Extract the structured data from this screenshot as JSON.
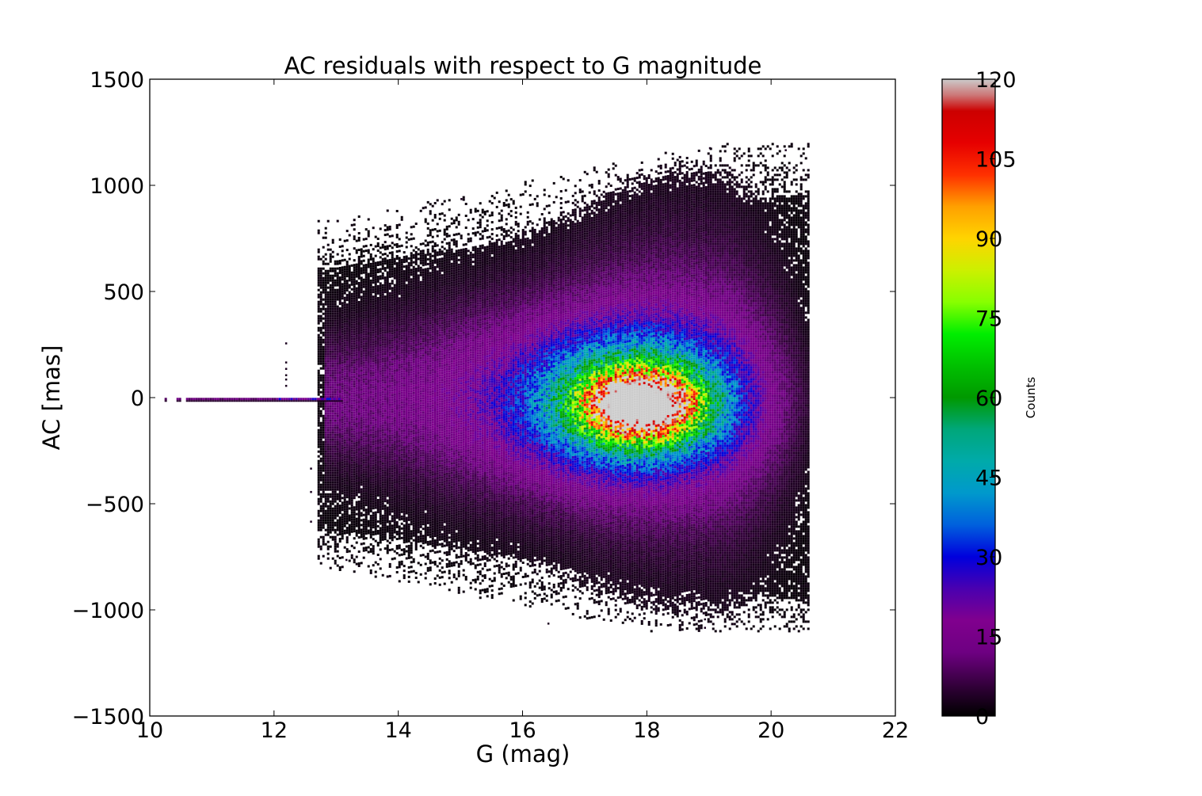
{
  "chart_data": {
    "type": "heatmap",
    "title": "AC residuals with respect to G magnitude",
    "xlabel": "G (mag)",
    "ylabel": "AC [mas]",
    "xlim": [
      10,
      22
    ],
    "ylim": [
      -1500,
      1500
    ],
    "xticks": [
      "10",
      "12",
      "14",
      "16",
      "18",
      "20",
      "22"
    ],
    "yticks": [
      "1500",
      "1000",
      "500",
      "0",
      "−500",
      "−1000",
      "−1500"
    ],
    "xtick_values": [
      10,
      12,
      14,
      16,
      18,
      20,
      22
    ],
    "ytick_values": [
      1500,
      1000,
      500,
      0,
      -500,
      -1000,
      -1500
    ],
    "grid": false,
    "colorbar": {
      "label": "Counts",
      "min": 0,
      "max": 120,
      "ticks": [
        "120",
        "105",
        "90",
        "75",
        "60",
        "45",
        "30",
        "15",
        "0"
      ],
      "tick_values": [
        120,
        105,
        90,
        75,
        60,
        45,
        30,
        15,
        0
      ],
      "colormap": "nipy_spectral"
    },
    "density_summary": {
      "peak": {
        "G": 17.9,
        "AC": -30,
        "count": 110
      },
      "bright_stars_strip": {
        "G_range": [
          10.2,
          13.1
        ],
        "AC": -5
      },
      "main_cloud": {
        "G_range": [
          12.8,
          20.5
        ],
        "AC_range": [
          -1070,
          1180
        ]
      }
    }
  }
}
